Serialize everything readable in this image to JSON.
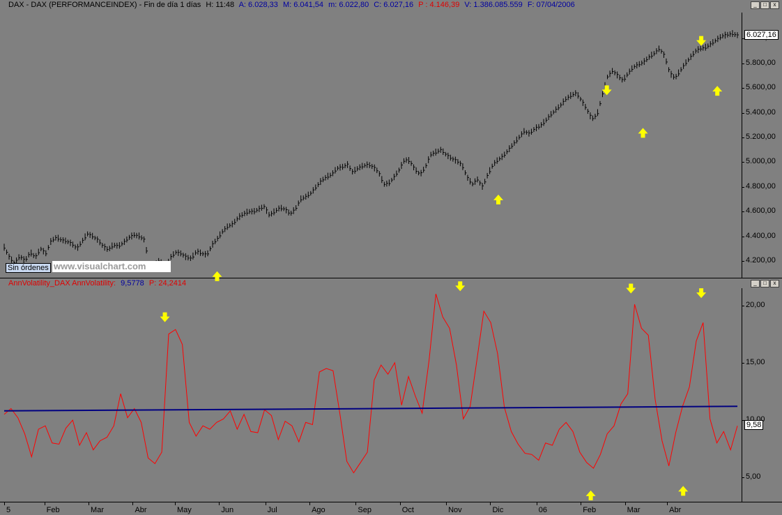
{
  "top_header": {
    "symbol": "DAX - DAX (PERFORMANCEINDEX) - Fin de día 1 días",
    "h": "H: 11:48",
    "a": "A: 6.028,33",
    "m_high": "M: 6.041,54",
    "m_low": "m: 6.022,80",
    "c": "C: 6.027,16",
    "p": "P : 4.146,39",
    "v": "V: 1.386.085.559",
    "f": "F: 07/04/2006"
  },
  "bottom_header": {
    "name": "AnnVolatility_DAX  AnnVolatility:",
    "value": "9,5778",
    "p": "P: 24,2414"
  },
  "window_buttons": [
    "_",
    "□",
    "x"
  ],
  "sin_ordenes": "Sin órdenes",
  "watermark": "www.visualchart.com",
  "chart_data": [
    {
      "type": "line",
      "title": "DAX - DAX (PERFORMANCEINDEX)",
      "y_ticks": [
        "6.000,00",
        "5.800,00",
        "5.600,00",
        "5.400,00",
        "5.200,00",
        "5.000,00",
        "4.800,00",
        "4.600,00",
        "4.400,00",
        "4.200,00"
      ],
      "y_tick_values": [
        6000,
        5800,
        5600,
        5400,
        5200,
        5000,
        4800,
        4600,
        4400,
        4200
      ],
      "ylim": [
        4110,
        6200
      ],
      "last_value_label": "6.027,16",
      "series": [
        {
          "values": [
            4310,
            4230,
            4180,
            4240,
            4200,
            4270,
            4230,
            4300,
            4260,
            4360,
            4390,
            4370,
            4360,
            4340,
            4300,
            4360,
            4420,
            4400,
            4370,
            4320,
            4290,
            4330,
            4320,
            4350,
            4390,
            4410,
            4400,
            4370,
            4130,
            4180,
            4200,
            4150,
            4230,
            4270,
            4260,
            4230,
            4220,
            4280,
            4260,
            4250,
            4330,
            4380,
            4440,
            4480,
            4500,
            4550,
            4580,
            4600,
            4600,
            4620,
            4640,
            4570,
            4600,
            4630,
            4620,
            4580,
            4620,
            4700,
            4720,
            4750,
            4800,
            4850,
            4880,
            4900,
            4950,
            4960,
            4980,
            4920,
            4950,
            4970,
            4980,
            4960,
            4920,
            4820,
            4830,
            4880,
            4940,
            5020,
            5010,
            4940,
            4900,
            4960,
            5060,
            5080,
            5100,
            5060,
            5030,
            5010,
            4980,
            4880,
            4820,
            4860,
            4800,
            4900,
            4980,
            5020,
            5050,
            5100,
            5150,
            5200,
            5250,
            5230,
            5270,
            5290,
            5330,
            5380,
            5420,
            5460,
            5510,
            5540,
            5560,
            5500,
            5430,
            5350,
            5380,
            5540,
            5690,
            5740,
            5700,
            5660,
            5720,
            5770,
            5790,
            5810,
            5850,
            5880,
            5920,
            5860,
            5720,
            5680,
            5740,
            5800,
            5850,
            5900,
            5920,
            5930,
            5960,
            5990,
            6020,
            6030,
            6040,
            6027
          ],
          "x_start": 0,
          "x_end": 365
        }
      ],
      "markers": [
        {
          "dir": "up",
          "day": 106,
          "value": 4140
        },
        {
          "dir": "up",
          "day": 246,
          "value": 4760
        },
        {
          "dir": "down",
          "day": 300,
          "value": 5520
        },
        {
          "dir": "up",
          "day": 318,
          "value": 5300
        },
        {
          "dir": "down",
          "day": 347,
          "value": 5920
        },
        {
          "dir": "up",
          "day": 355,
          "value": 5640
        }
      ]
    },
    {
      "type": "line",
      "title": "AnnVolatility_DAX",
      "y_ticks": [
        "20,00",
        "15,00",
        "10,00",
        "5,00"
      ],
      "y_tick_values": [
        20,
        15,
        10,
        5
      ],
      "ylim": [
        3.0,
        21.5
      ],
      "last_value_label": "9,58",
      "series": [
        {
          "name": "AnnVolatility",
          "color": "#ff0000",
          "values": [
            10.5,
            11.0,
            10.2,
            8.8,
            6.8,
            9.2,
            9.5,
            8.0,
            7.9,
            9.3,
            10.0,
            7.8,
            8.9,
            7.4,
            8.2,
            8.5,
            9.5,
            12.3,
            10.2,
            11.0,
            9.8,
            6.7,
            6.2,
            7.2,
            17.5,
            17.9,
            16.6,
            9.8,
            8.6,
            9.5,
            9.2,
            9.8,
            10.1,
            10.8,
            9.2,
            10.5,
            9.0,
            8.9,
            10.9,
            10.4,
            8.3,
            9.9,
            9.5,
            8.1,
            9.8,
            9.6,
            14.2,
            14.5,
            14.3,
            10.5,
            6.4,
            5.4,
            6.3,
            7.2,
            13.5,
            14.8,
            14.0,
            15.0,
            11.3,
            13.8,
            12.1,
            10.6,
            15.2,
            21.0,
            19.0,
            18.0,
            14.8,
            10.1,
            11.2,
            15.3,
            19.5,
            18.5,
            15.8,
            11.1,
            9.0,
            7.9,
            7.1,
            7.0,
            6.5,
            8.0,
            7.8,
            9.2,
            9.8,
            9.0,
            7.2,
            6.3,
            5.8,
            7.0,
            8.8,
            9.5,
            11.4,
            12.3,
            20.1,
            18.0,
            17.4,
            11.8,
            8.2,
            6.0,
            8.9,
            11.2,
            12.9,
            16.9,
            18.5,
            10.1,
            8.0,
            9.0,
            7.4,
            9.5
          ],
          "x_start": 0,
          "x_end": 365
        },
        {
          "name": "MA",
          "color": "#000080",
          "values": [
            10.8,
            11.2
          ],
          "x_start": 0,
          "x_end": 365
        }
      ],
      "markers": [
        {
          "dir": "down",
          "day": 80,
          "value": 18.3
        },
        {
          "dir": "down",
          "day": 227,
          "value": 21.0
        },
        {
          "dir": "up",
          "day": 292,
          "value": 4.1
        },
        {
          "dir": "down",
          "day": 312,
          "value": 20.8
        },
        {
          "dir": "up",
          "day": 338,
          "value": 4.5
        },
        {
          "dir": "down",
          "day": 347,
          "value": 20.4
        }
      ]
    }
  ],
  "x_axis": {
    "labels": [
      "5",
      "Feb",
      "Mar",
      "Abr",
      "May",
      "Jun",
      "Jul",
      "Ago",
      "Sep",
      "Oct",
      "Nov",
      "Dic",
      "06",
      "Feb",
      "Mar",
      "Abr"
    ],
    "label_days": [
      0,
      20,
      42,
      64,
      85,
      107,
      130,
      152,
      175,
      197,
      220,
      242,
      265,
      287,
      309,
      330
    ]
  }
}
